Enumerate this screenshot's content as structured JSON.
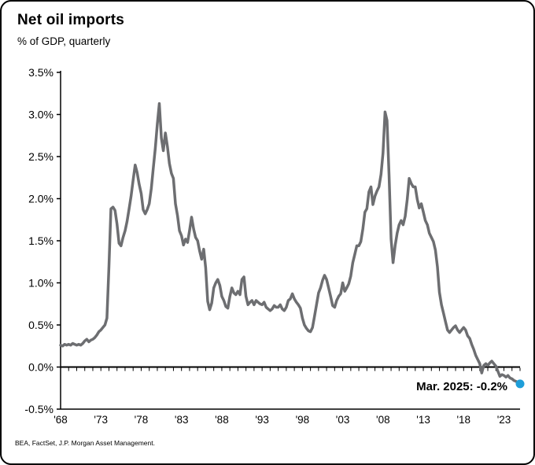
{
  "header": {
    "title": "Net oil imports",
    "subtitle": "% of GDP, quarterly"
  },
  "footer": {
    "source": "BEA, FactSet, J.P. Morgan Asset Management."
  },
  "chart_data": {
    "type": "line",
    "title": "Net oil imports",
    "subtitle": "% of GDP, quarterly",
    "unit": "% of GDP",
    "frequency": "quarterly",
    "x_start_year": 1968,
    "x_end_label": "Mar. 2025",
    "ylim": [
      -0.5,
      3.5
    ],
    "grid": false,
    "line_color": "#6d6e71",
    "axis_color": "#000000",
    "y_ticks": [
      {
        "label": "3.5%",
        "value": 3.5
      },
      {
        "label": "3.0%",
        "value": 3.0
      },
      {
        "label": "2.5%",
        "value": 2.5
      },
      {
        "label": "2.0%",
        "value": 2.0
      },
      {
        "label": "1.5%",
        "value": 1.5
      },
      {
        "label": "1.0%",
        "value": 1.0
      },
      {
        "label": "0.5%",
        "value": 0.5
      },
      {
        "label": "0.0%",
        "value": 0.0
      },
      {
        "label": "-0.5%",
        "value": -0.5
      }
    ],
    "x_ticks": [
      {
        "label": "'68",
        "year": 1968
      },
      {
        "label": "'73",
        "year": 1973
      },
      {
        "label": "'78",
        "year": 1978
      },
      {
        "label": "'83",
        "year": 1983
      },
      {
        "label": "'88",
        "year": 1988
      },
      {
        "label": "'93",
        "year": 1993
      },
      {
        "label": "'98",
        "year": 1998
      },
      {
        "label": "'03",
        "year": 2003
      },
      {
        "label": "'08",
        "year": 2008
      },
      {
        "label": "'13",
        "year": 2013
      },
      {
        "label": "'18",
        "year": 2018
      },
      {
        "label": "'23",
        "year": 2023
      }
    ],
    "annotation": {
      "label": "Mar. 2025: -0.2%",
      "period": "Mar. 2025",
      "value": -0.2,
      "color": "#1e9ed9"
    },
    "values": [
      0.26,
      0.25,
      0.27,
      0.26,
      0.27,
      0.26,
      0.28,
      0.27,
      0.26,
      0.27,
      0.26,
      0.28,
      0.31,
      0.33,
      0.3,
      0.32,
      0.33,
      0.35,
      0.38,
      0.42,
      0.44,
      0.47,
      0.5,
      0.58,
      1.2,
      1.88,
      1.9,
      1.86,
      1.7,
      1.47,
      1.44,
      1.54,
      1.62,
      1.73,
      1.88,
      2.03,
      2.22,
      2.4,
      2.31,
      2.17,
      2.06,
      1.87,
      1.82,
      1.87,
      1.94,
      2.12,
      2.36,
      2.6,
      2.88,
      3.13,
      2.72,
      2.57,
      2.78,
      2.62,
      2.42,
      2.3,
      2.24,
      1.94,
      1.8,
      1.62,
      1.56,
      1.45,
      1.52,
      1.48,
      1.62,
      1.78,
      1.64,
      1.54,
      1.5,
      1.38,
      1.28,
      1.4,
      1.18,
      0.78,
      0.68,
      0.76,
      0.94,
      1.0,
      1.04,
      0.97,
      0.84,
      0.79,
      0.72,
      0.7,
      0.84,
      0.94,
      0.88,
      0.86,
      0.9,
      0.86,
      1.04,
      1.07,
      0.84,
      0.74,
      0.77,
      0.79,
      0.74,
      0.79,
      0.77,
      0.75,
      0.74,
      0.77,
      0.71,
      0.69,
      0.67,
      0.69,
      0.73,
      0.71,
      0.71,
      0.74,
      0.69,
      0.67,
      0.71,
      0.79,
      0.81,
      0.87,
      0.81,
      0.77,
      0.74,
      0.7,
      0.58,
      0.5,
      0.46,
      0.43,
      0.42,
      0.47,
      0.6,
      0.74,
      0.88,
      0.94,
      1.03,
      1.09,
      1.04,
      0.94,
      0.84,
      0.73,
      0.71,
      0.79,
      0.84,
      0.87,
      1.0,
      0.9,
      0.94,
      0.99,
      1.08,
      1.24,
      1.34,
      1.44,
      1.44,
      1.49,
      1.64,
      1.84,
      1.88,
      2.08,
      2.14,
      1.93,
      2.03,
      2.09,
      2.14,
      2.29,
      2.54,
      3.03,
      2.93,
      2.28,
      1.52,
      1.24,
      1.44,
      1.59,
      1.69,
      1.74,
      1.69,
      1.79,
      1.99,
      2.24,
      2.18,
      2.14,
      2.14,
      1.99,
      1.89,
      1.94,
      1.84,
      1.74,
      1.69,
      1.59,
      1.54,
      1.49,
      1.39,
      1.19,
      0.89,
      0.74,
      0.64,
      0.54,
      0.44,
      0.41,
      0.44,
      0.47,
      0.49,
      0.44,
      0.41,
      0.44,
      0.47,
      0.44,
      0.37,
      0.34,
      0.27,
      0.21,
      0.14,
      0.09,
      0.04,
      -0.07,
      0.02,
      0.04,
      0.02,
      0.05,
      0.07,
      0.04,
      0.01,
      -0.05,
      -0.11,
      -0.09,
      -0.1,
      -0.12,
      -0.1,
      -0.13,
      -0.14,
      -0.16,
      -0.17,
      -0.19,
      -0.2
    ]
  }
}
